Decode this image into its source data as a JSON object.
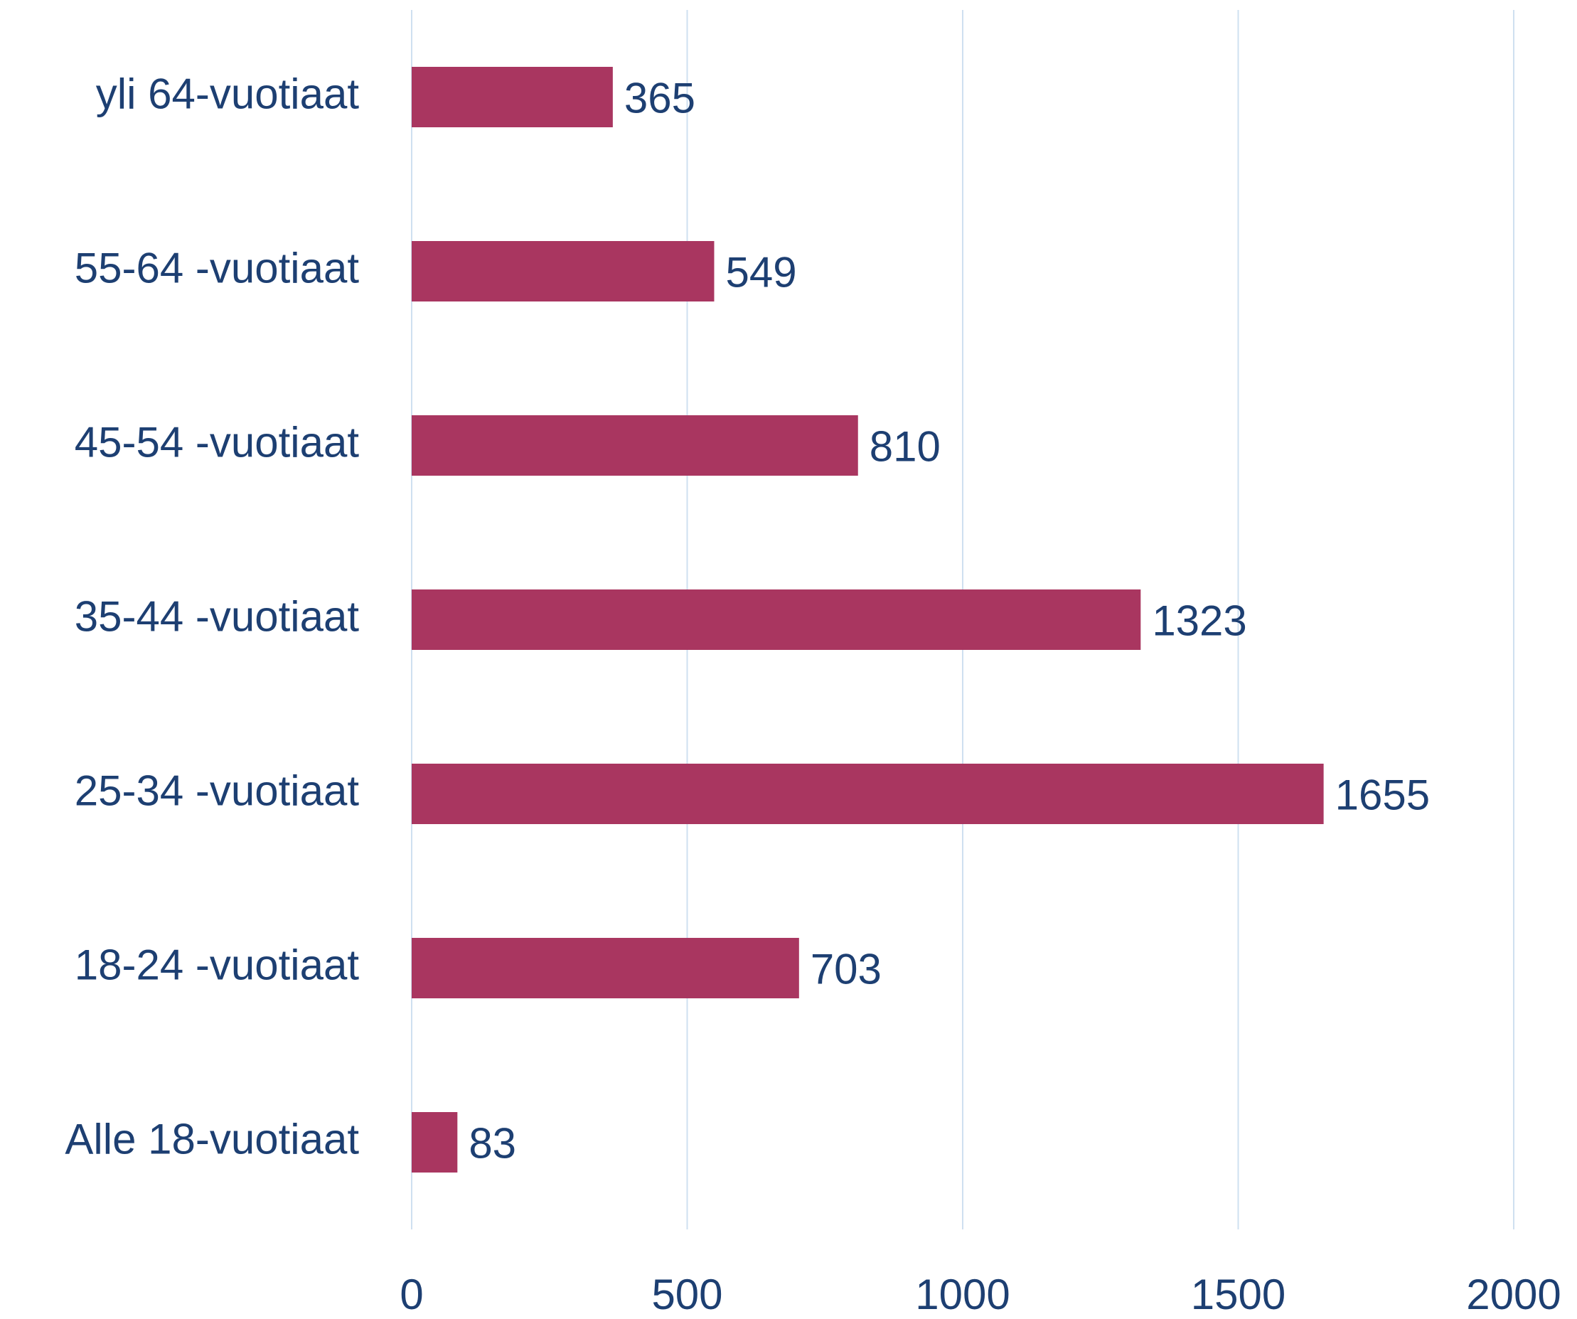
{
  "chart_data": {
    "type": "bar",
    "orientation": "horizontal",
    "categories": [
      "yli 64-vuotiaat",
      "55-64 -vuotiaat",
      "45-54 -vuotiaat",
      "35-44 -vuotiaat",
      "25-34 -vuotiaat",
      "18-24 -vuotiaat",
      "Alle 18-vuotiaat"
    ],
    "values": [
      365,
      549,
      810,
      1323,
      1655,
      703,
      83
    ],
    "color": "#a93660",
    "xlim": [
      0,
      2000
    ],
    "xticks": [
      0,
      500,
      1000,
      1500,
      2000
    ],
    "grid": true
  }
}
